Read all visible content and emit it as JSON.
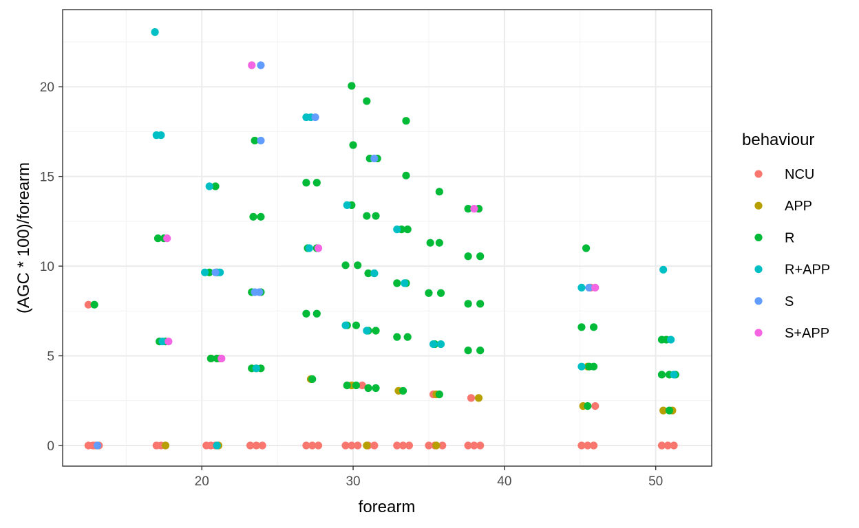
{
  "chart_data": {
    "type": "scatter",
    "title": "",
    "xlabel": "forearm",
    "ylabel": "(AGC * 100)/forearm",
    "xlim": [
      10.8,
      53.7
    ],
    "ylim": [
      -1.15,
      24.3
    ],
    "x_ticks": [
      20,
      30,
      40,
      50
    ],
    "y_ticks": [
      0,
      5,
      10,
      15,
      20
    ],
    "x_tick_labels": [
      "20",
      "30",
      "40",
      "50"
    ],
    "y_tick_labels": [
      "0",
      "5",
      "10",
      "15",
      "20"
    ],
    "grid": true,
    "legend_position": "right",
    "legend_title": "behaviour",
    "series": [
      {
        "name": "NCU",
        "color": "#F8766D",
        "points": [
          [
            12.5,
            0
          ],
          [
            12.8,
            0
          ],
          [
            13.0,
            0
          ],
          [
            13.2,
            0
          ],
          [
            12.5,
            7.85
          ],
          [
            17.0,
            0
          ],
          [
            17.3,
            0
          ],
          [
            17.6,
            0
          ],
          [
            20.3,
            0
          ],
          [
            20.6,
            0
          ],
          [
            20.9,
            0
          ],
          [
            21.1,
            0
          ],
          [
            21.2,
            4.85
          ],
          [
            23.2,
            0
          ],
          [
            23.6,
            0
          ],
          [
            24.0,
            0
          ],
          [
            26.9,
            0
          ],
          [
            27.3,
            0
          ],
          [
            27.7,
            0
          ],
          [
            29.5,
            0
          ],
          [
            29.9,
            0
          ],
          [
            30.3,
            0
          ],
          [
            30.6,
            3.35
          ],
          [
            31.0,
            0
          ],
          [
            31.4,
            0
          ],
          [
            32.9,
            0
          ],
          [
            33.3,
            0
          ],
          [
            33.7,
            0
          ],
          [
            35.0,
            0
          ],
          [
            35.4,
            0
          ],
          [
            35.9,
            0
          ],
          [
            35.3,
            2.85
          ],
          [
            37.6,
            0
          ],
          [
            38.0,
            0
          ],
          [
            38.4,
            0
          ],
          [
            37.8,
            2.65
          ],
          [
            45.1,
            0
          ],
          [
            45.5,
            0
          ],
          [
            45.9,
            0
          ],
          [
            46.0,
            2.2
          ],
          [
            45.7,
            8.8
          ],
          [
            50.4,
            0
          ],
          [
            50.8,
            0
          ],
          [
            51.2,
            0
          ]
        ]
      },
      {
        "name": "APP",
        "color": "#B79F00",
        "points": [
          [
            17.6,
            0
          ],
          [
            20.6,
            4.85
          ],
          [
            21.1,
            0
          ],
          [
            23.6,
            4.3
          ],
          [
            27.2,
            3.7
          ],
          [
            29.9,
            3.35
          ],
          [
            30.9,
            0
          ],
          [
            33.0,
            3.05
          ],
          [
            35.5,
            2.85
          ],
          [
            35.5,
            0
          ],
          [
            38.3,
            2.65
          ],
          [
            45.2,
            2.2
          ],
          [
            45.5,
            4.4
          ],
          [
            50.5,
            1.95
          ],
          [
            51.1,
            1.95
          ]
        ]
      },
      {
        "name": "R",
        "color": "#00BA38",
        "points": [
          [
            12.9,
            7.85
          ],
          [
            17.1,
            11.55
          ],
          [
            17.5,
            11.55
          ],
          [
            17.2,
            5.8
          ],
          [
            17.6,
            5.8
          ],
          [
            20.9,
            14.45
          ],
          [
            20.5,
            9.65
          ],
          [
            21.0,
            9.65
          ],
          [
            20.6,
            4.85
          ],
          [
            21.0,
            4.85
          ],
          [
            23.5,
            17.0
          ],
          [
            23.4,
            12.75
          ],
          [
            23.9,
            12.75
          ],
          [
            23.3,
            8.55
          ],
          [
            23.9,
            8.55
          ],
          [
            23.3,
            4.3
          ],
          [
            23.9,
            4.3
          ],
          [
            26.9,
            14.65
          ],
          [
            27.6,
            14.65
          ],
          [
            27.0,
            11.0
          ],
          [
            27.6,
            11.0
          ],
          [
            26.9,
            7.35
          ],
          [
            27.6,
            7.35
          ],
          [
            27.3,
            3.7
          ],
          [
            29.9,
            20.05
          ],
          [
            30.0,
            16.75
          ],
          [
            29.9,
            13.4
          ],
          [
            29.5,
            10.05
          ],
          [
            30.3,
            10.05
          ],
          [
            29.6,
            6.7
          ],
          [
            30.2,
            6.7
          ],
          [
            29.6,
            3.35
          ],
          [
            30.2,
            3.35
          ],
          [
            30.9,
            19.2
          ],
          [
            31.1,
            16.0
          ],
          [
            31.6,
            16.0
          ],
          [
            30.9,
            12.8
          ],
          [
            31.5,
            12.8
          ],
          [
            31.0,
            9.6
          ],
          [
            31.4,
            9.6
          ],
          [
            31.0,
            6.4
          ],
          [
            31.5,
            6.4
          ],
          [
            31.0,
            3.2
          ],
          [
            31.5,
            3.2
          ],
          [
            33.5,
            18.1
          ],
          [
            33.5,
            15.05
          ],
          [
            33.2,
            12.05
          ],
          [
            33.6,
            12.05
          ],
          [
            32.9,
            9.05
          ],
          [
            33.5,
            9.05
          ],
          [
            32.9,
            6.05
          ],
          [
            33.6,
            6.05
          ],
          [
            33.3,
            3.05
          ],
          [
            35.7,
            14.15
          ],
          [
            35.1,
            11.3
          ],
          [
            35.7,
            11.3
          ],
          [
            35.0,
            8.5
          ],
          [
            35.8,
            8.5
          ],
          [
            35.4,
            5.65
          ],
          [
            35.7,
            2.85
          ],
          [
            37.6,
            13.2
          ],
          [
            38.3,
            13.2
          ],
          [
            37.6,
            10.55
          ],
          [
            38.4,
            10.55
          ],
          [
            37.6,
            7.9
          ],
          [
            38.4,
            7.9
          ],
          [
            37.6,
            5.3
          ],
          [
            38.4,
            5.3
          ],
          [
            45.4,
            11.0
          ],
          [
            45.1,
            6.6
          ],
          [
            45.9,
            6.6
          ],
          [
            45.6,
            4.4
          ],
          [
            45.9,
            4.4
          ],
          [
            45.5,
            2.2
          ],
          [
            50.4,
            5.9
          ],
          [
            50.7,
            5.9
          ],
          [
            50.4,
            3.95
          ],
          [
            50.9,
            3.95
          ],
          [
            51.3,
            3.95
          ],
          [
            50.9,
            1.95
          ]
        ]
      },
      {
        "name": "R+APP",
        "color": "#00BFC4",
        "points": [
          [
            16.9,
            23.05
          ],
          [
            17.0,
            17.3
          ],
          [
            17.3,
            17.3
          ],
          [
            17.4,
            5.8
          ],
          [
            20.5,
            14.45
          ],
          [
            20.2,
            9.65
          ],
          [
            21.2,
            9.65
          ],
          [
            21.0,
            0
          ],
          [
            23.6,
            4.3
          ],
          [
            26.9,
            18.3
          ],
          [
            27.2,
            18.3
          ],
          [
            27.1,
            11.0
          ],
          [
            29.6,
            13.4
          ],
          [
            29.5,
            6.7
          ],
          [
            31.4,
            9.6
          ],
          [
            30.9,
            6.4
          ],
          [
            32.9,
            12.05
          ],
          [
            33.4,
            9.05
          ],
          [
            35.3,
            5.65
          ],
          [
            35.8,
            5.65
          ],
          [
            45.1,
            8.8
          ],
          [
            45.1,
            4.4
          ],
          [
            51.0,
            5.9
          ],
          [
            50.5,
            9.8
          ],
          [
            51.2,
            3.95
          ]
        ]
      },
      {
        "name": "S",
        "color": "#619CFF",
        "points": [
          [
            13.1,
            0
          ],
          [
            23.9,
            21.2
          ],
          [
            23.9,
            17.0
          ],
          [
            23.8,
            8.55
          ],
          [
            23.5,
            8.55
          ],
          [
            20.9,
            9.65
          ],
          [
            27.5,
            18.3
          ],
          [
            31.4,
            16.0
          ],
          [
            45.6,
            8.8
          ]
        ]
      },
      {
        "name": "S+APP",
        "color": "#F564E3",
        "points": [
          [
            23.3,
            21.2
          ],
          [
            17.7,
            11.55
          ],
          [
            17.8,
            5.8
          ],
          [
            21.3,
            4.85
          ],
          [
            27.7,
            11.0
          ],
          [
            38.0,
            13.2
          ],
          [
            46.0,
            8.8
          ]
        ]
      }
    ]
  }
}
